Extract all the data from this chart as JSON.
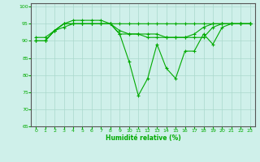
{
  "xlabel": "Humidité relative (%)",
  "background_color": "#cff0ea",
  "grid_color": "#aad8cc",
  "line_color": "#00aa00",
  "xlim": [
    -0.5,
    23.5
  ],
  "ylim": [
    65,
    101
  ],
  "yticks": [
    65,
    70,
    75,
    80,
    85,
    90,
    95,
    100
  ],
  "xticks": [
    0,
    1,
    2,
    3,
    4,
    5,
    6,
    7,
    8,
    9,
    10,
    11,
    12,
    13,
    14,
    15,
    16,
    17,
    18,
    19,
    20,
    21,
    22,
    23
  ],
  "series": [
    [
      90,
      90,
      93,
      94,
      95,
      95,
      95,
      95,
      95,
      92,
      84,
      74,
      79,
      89,
      82,
      79,
      87,
      87,
      92,
      89,
      94,
      95,
      95,
      95
    ],
    [
      90,
      90,
      93,
      95,
      95,
      95,
      95,
      95,
      95,
      93,
      92,
      92,
      92,
      92,
      91,
      91,
      91,
      91,
      91,
      94,
      95,
      95,
      95,
      95
    ],
    [
      90,
      90,
      93,
      95,
      96,
      96,
      96,
      96,
      95,
      95,
      95,
      95,
      95,
      95,
      95,
      95,
      95,
      95,
      95,
      95,
      95,
      95,
      95,
      95
    ],
    [
      91,
      91,
      93,
      95,
      95,
      95,
      95,
      95,
      95,
      92,
      92,
      92,
      91,
      91,
      91,
      91,
      91,
      92,
      94,
      95,
      95,
      95,
      95,
      95
    ]
  ]
}
